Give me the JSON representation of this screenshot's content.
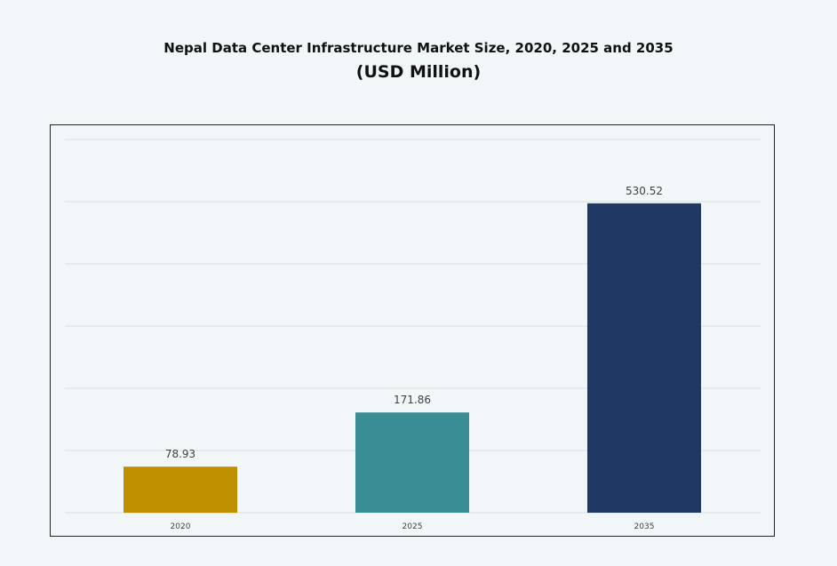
{
  "chart_data": {
    "type": "bar",
    "title": "Nepal Data Center Infrastructure Market Size, 2020, 2025 and 2035",
    "subtitle": "(USD Million)",
    "categories": [
      "2020",
      "2025",
      "2035"
    ],
    "values": [
      78.93,
      171.86,
      530.52
    ],
    "data_labels": [
      "78.93",
      "171.86",
      "530.52"
    ],
    "colors": [
      "#bf8f00",
      "#3a8c95",
      "#1f3864"
    ],
    "xlabel": "",
    "ylabel": "",
    "ylim": [
      0,
      640
    ],
    "grid": true,
    "y_axis_labels_visible": false,
    "legend": "none"
  }
}
